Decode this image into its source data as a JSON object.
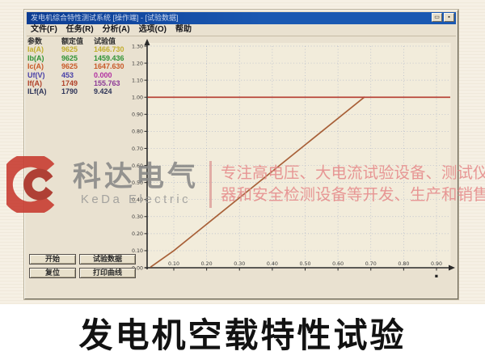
{
  "window": {
    "title": "发电机综合特性测试系统 [操作端] - [试验数据]",
    "buttons": [
      {
        "name": "maximize",
        "glyph": "▭"
      },
      {
        "name": "close",
        "glyph": "▪"
      }
    ]
  },
  "menu": {
    "items": [
      "文件(F)",
      "任务(R)",
      "分析(A)",
      "选项(O)",
      "帮助"
    ]
  },
  "data_table": {
    "headers": [
      "参数",
      "额定值",
      "试验值"
    ],
    "rows": [
      {
        "param": "Ia(A)",
        "rated": "9625",
        "test": "1466.730",
        "color": "#c2ae2e"
      },
      {
        "param": "Ib(A)",
        "rated": "9625",
        "test": "1459.436",
        "color": "#2f9234"
      },
      {
        "param": "Ic(A)",
        "rated": "9625",
        "test": "1647.630",
        "color": "#c85a28"
      },
      {
        "param": "Uf(V)",
        "rated": "453",
        "test": "0.000",
        "color": "#4840a8",
        "test_color": "#b22fa0"
      },
      {
        "param": "If(A)",
        "rated": "1749",
        "test": "155.763",
        "color": "#b04028",
        "test_color": "#8c3a96"
      },
      {
        "param": "ILf(A)",
        "rated": "1790",
        "test": "9.424",
        "color": "#2e3458"
      }
    ]
  },
  "control_buttons": [
    "开始",
    "试验数据",
    "复位",
    "打印曲线"
  ],
  "chart_data": {
    "type": "line",
    "title": "",
    "xlabel": "",
    "ylabel": "",
    "xlim": [
      0,
      0.95
    ],
    "ylim": [
      0,
      1.3
    ],
    "grid": true,
    "x_ticks": [
      "0.10",
      "0.20",
      "0.30",
      "0.40",
      "0.50",
      "0.60",
      "0.70",
      "0.80",
      "0.90"
    ],
    "y_ticks": [
      "1.30",
      "1.20",
      "1.10",
      "1.00",
      "0.90",
      "0.80",
      "0.70",
      "0.60",
      "0.50",
      "0.40",
      "0.30",
      "0.20",
      "0.10",
      "0.00"
    ],
    "series": [
      {
        "name": "no-load-characteristic-curve",
        "kind": "line",
        "color": "#a86038",
        "points": [
          [
            0.03,
            0.005
          ],
          [
            0.1,
            0.1
          ],
          [
            0.68,
            1.0
          ]
        ]
      },
      {
        "name": "rated-voltage-reference-line",
        "kind": "hline",
        "color": "#b8463a",
        "y": 1.0
      }
    ],
    "x_axis_end_glyph": "▪",
    "grid_color": "#98a4c4",
    "axis_color": "#2a2a2a",
    "plot_bg": "#f2ecdb"
  },
  "watermark": {
    "brand_cn": "科达电气",
    "brand_en": "KeDa Electric",
    "slogan_line1": "专注高电压、大电流试验设备、测试仪",
    "slogan_line2": "器和安全检测设备等开发、生产和销售",
    "logo_color": "#c8392e",
    "logo_color_dark": "#a82a20"
  },
  "caption": "发电机空载特性试验"
}
